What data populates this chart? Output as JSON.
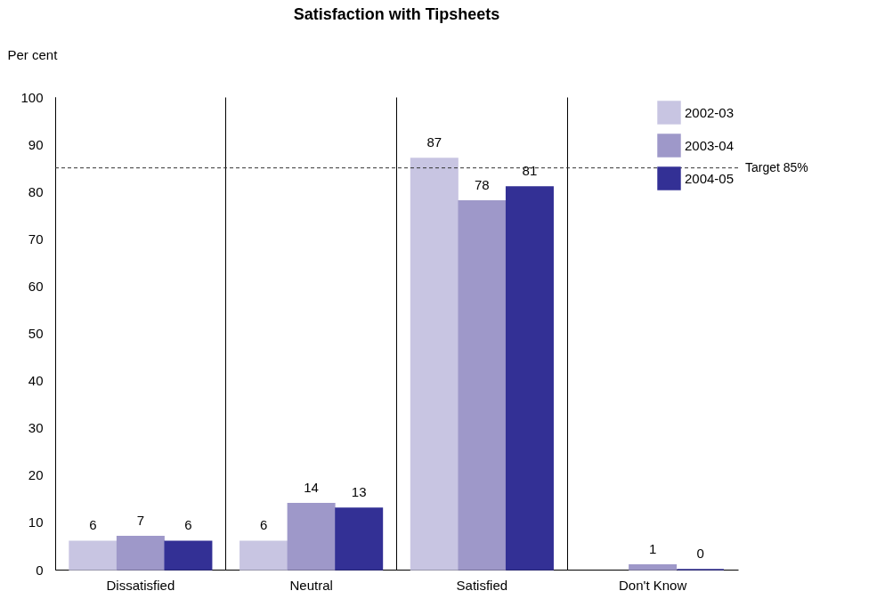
{
  "chart_data": {
    "type": "bar",
    "title": "Satisfaction with Tipsheets",
    "ylabel": "Per cent",
    "categories": [
      "Dissatisfied",
      "Neutral",
      "Satisfied",
      "Don't Know"
    ],
    "series": [
      {
        "name": "2002-03",
        "color": "#c8c5e2",
        "values": [
          6,
          6,
          87,
          null
        ]
      },
      {
        "name": "2003-04",
        "color": "#9e98c9",
        "values": [
          7,
          14,
          78,
          1
        ]
      },
      {
        "name": "2004-05",
        "color": "#333095",
        "values": [
          6,
          13,
          81,
          0
        ]
      }
    ],
    "ylim": [
      0,
      100
    ],
    "yticks": [
      0,
      10,
      20,
      30,
      40,
      50,
      60,
      70,
      80,
      90,
      100
    ],
    "ref_lines": [
      {
        "axis": "y",
        "value": 85,
        "label": "Target 85%",
        "color": "#333333",
        "line_style": "dashed"
      }
    ],
    "data_labels": true,
    "grid": "x",
    "legend": "top right"
  }
}
